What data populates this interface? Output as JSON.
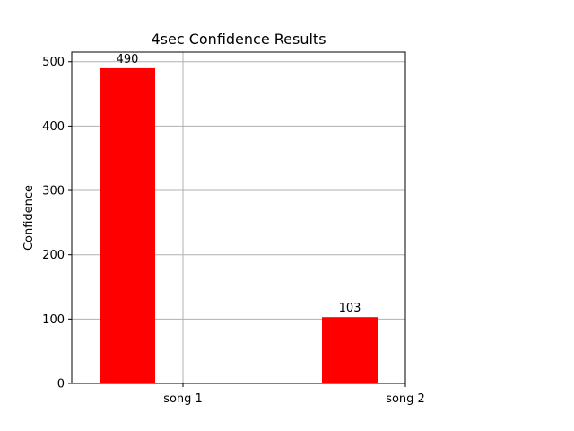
{
  "chart_data": {
    "type": "bar",
    "title": "4sec Confidence Results",
    "xlabel": "",
    "ylabel": "Confidence",
    "categories": [
      "song 1",
      "song 2"
    ],
    "values": [
      490,
      103
    ],
    "data_labels": [
      "490",
      "103"
    ],
    "ylim": [
      0,
      515
    ],
    "yticks": [
      0,
      100,
      200,
      300,
      400,
      500
    ],
    "ytick_labels": [
      "0",
      "100",
      "200",
      "300",
      "400",
      "500"
    ],
    "xlim": [
      -0.5,
      1.0
    ],
    "xticks": [
      0.0,
      1.0
    ],
    "xtick_labels": [
      "song 1",
      "song 2"
    ],
    "bar_left_edges": [
      -0.375,
      0.625
    ],
    "bar_width": 0.25,
    "grid": true,
    "bar_color": "#ff0000",
    "grid_color": "#b0b0b0"
  }
}
